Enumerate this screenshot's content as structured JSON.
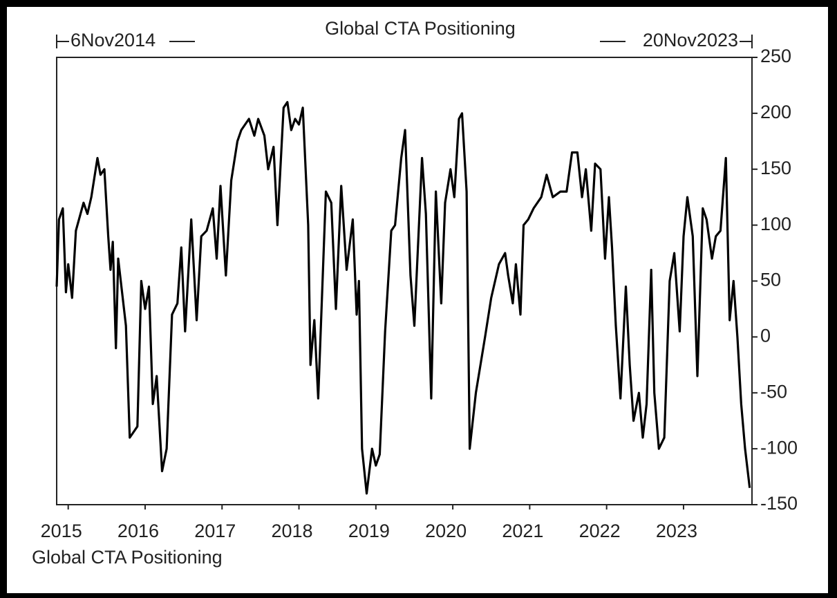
{
  "chart_data": {
    "type": "line",
    "title": "Global CTA Positioning",
    "start_label": "6Nov2014",
    "end_label": "20Nov2023",
    "x": [
      2014.85,
      2014.88,
      2014.93,
      2014.97,
      2015.0,
      2015.05,
      2015.1,
      2015.2,
      2015.25,
      2015.3,
      2015.38,
      2015.42,
      2015.47,
      2015.52,
      2015.55,
      2015.58,
      2015.62,
      2015.65,
      2015.7,
      2015.75,
      2015.8,
      2015.85,
      2015.9,
      2015.95,
      2016.0,
      2016.05,
      2016.1,
      2016.15,
      2016.22,
      2016.28,
      2016.35,
      2016.42,
      2016.47,
      2016.52,
      2016.6,
      2016.67,
      2016.73,
      2016.8,
      2016.88,
      2016.93,
      2016.98,
      2017.05,
      2017.12,
      2017.2,
      2017.25,
      2017.35,
      2017.42,
      2017.47,
      2017.55,
      2017.6,
      2017.67,
      2017.72,
      2017.8,
      2017.85,
      2017.9,
      2017.95,
      2018.0,
      2018.05,
      2018.12,
      2018.15,
      2018.2,
      2018.25,
      2018.35,
      2018.42,
      2018.48,
      2018.55,
      2018.62,
      2018.7,
      2018.75,
      2018.78,
      2018.82,
      2018.88,
      2018.95,
      2019.0,
      2019.05,
      2019.12,
      2019.2,
      2019.25,
      2019.33,
      2019.38,
      2019.45,
      2019.5,
      2019.6,
      2019.65,
      2019.72,
      2019.78,
      2019.85,
      2019.9,
      2019.97,
      2020.02,
      2020.08,
      2020.12,
      2020.18,
      2020.22,
      2020.3,
      2020.42,
      2020.5,
      2020.6,
      2020.68,
      2020.72,
      2020.78,
      2020.82,
      2020.88,
      2020.92,
      2020.98,
      2021.05,
      2021.15,
      2021.22,
      2021.3,
      2021.4,
      2021.48,
      2021.55,
      2021.62,
      2021.68,
      2021.73,
      2021.8,
      2021.85,
      2021.92,
      2021.98,
      2022.03,
      2022.07,
      2022.12,
      2022.18,
      2022.25,
      2022.3,
      2022.35,
      2022.42,
      2022.47,
      2022.52,
      2022.58,
      2022.62,
      2022.68,
      2022.75,
      2022.82,
      2022.88,
      2022.95,
      2023.0,
      2023.05,
      2023.12,
      2023.18,
      2023.25,
      2023.3,
      2023.37,
      2023.42,
      2023.48,
      2023.55,
      2023.6,
      2023.65,
      2023.7,
      2023.75,
      2023.8,
      2023.86
    ],
    "series": [
      {
        "name": "Global CTA Positioning",
        "color": "#000000",
        "values": [
          45,
          105,
          115,
          40,
          65,
          35,
          95,
          120,
          110,
          125,
          160,
          145,
          150,
          90,
          60,
          85,
          -10,
          70,
          40,
          10,
          -90,
          -85,
          -80,
          50,
          25,
          45,
          -60,
          -35,
          -120,
          -100,
          20,
          30,
          80,
          5,
          105,
          15,
          90,
          95,
          115,
          70,
          135,
          55,
          140,
          175,
          185,
          195,
          180,
          195,
          180,
          150,
          170,
          100,
          205,
          210,
          185,
          195,
          190,
          205,
          100,
          -25,
          15,
          -55,
          130,
          120,
          25,
          135,
          60,
          105,
          20,
          50,
          -100,
          -140,
          -100,
          -115,
          -105,
          5,
          95,
          100,
          160,
          185,
          55,
          10,
          160,
          110,
          -55,
          130,
          30,
          120,
          150,
          125,
          195,
          200,
          130,
          -100,
          -50,
          0,
          35,
          65,
          75,
          55,
          30,
          65,
          20,
          100,
          105,
          115,
          125,
          145,
          125,
          130,
          130,
          165,
          165,
          125,
          150,
          95,
          155,
          150,
          70,
          125,
          80,
          10,
          -55,
          45,
          -25,
          -75,
          -50,
          -90,
          -60,
          60,
          -50,
          -100,
          -90,
          50,
          75,
          5,
          90,
          125,
          90,
          -35,
          115,
          105,
          70,
          90,
          95,
          160,
          15,
          50,
          0,
          -60,
          -100,
          -135
        ]
      }
    ],
    "xlim": [
      2014.85,
      2023.89
    ],
    "xticks": [
      2015,
      2016,
      2017,
      2018,
      2019,
      2020,
      2021,
      2022,
      2023
    ],
    "ylim": [
      -150,
      250
    ],
    "yticks": [
      -150,
      -100,
      -50,
      0,
      50,
      100,
      150,
      200,
      250
    ]
  }
}
